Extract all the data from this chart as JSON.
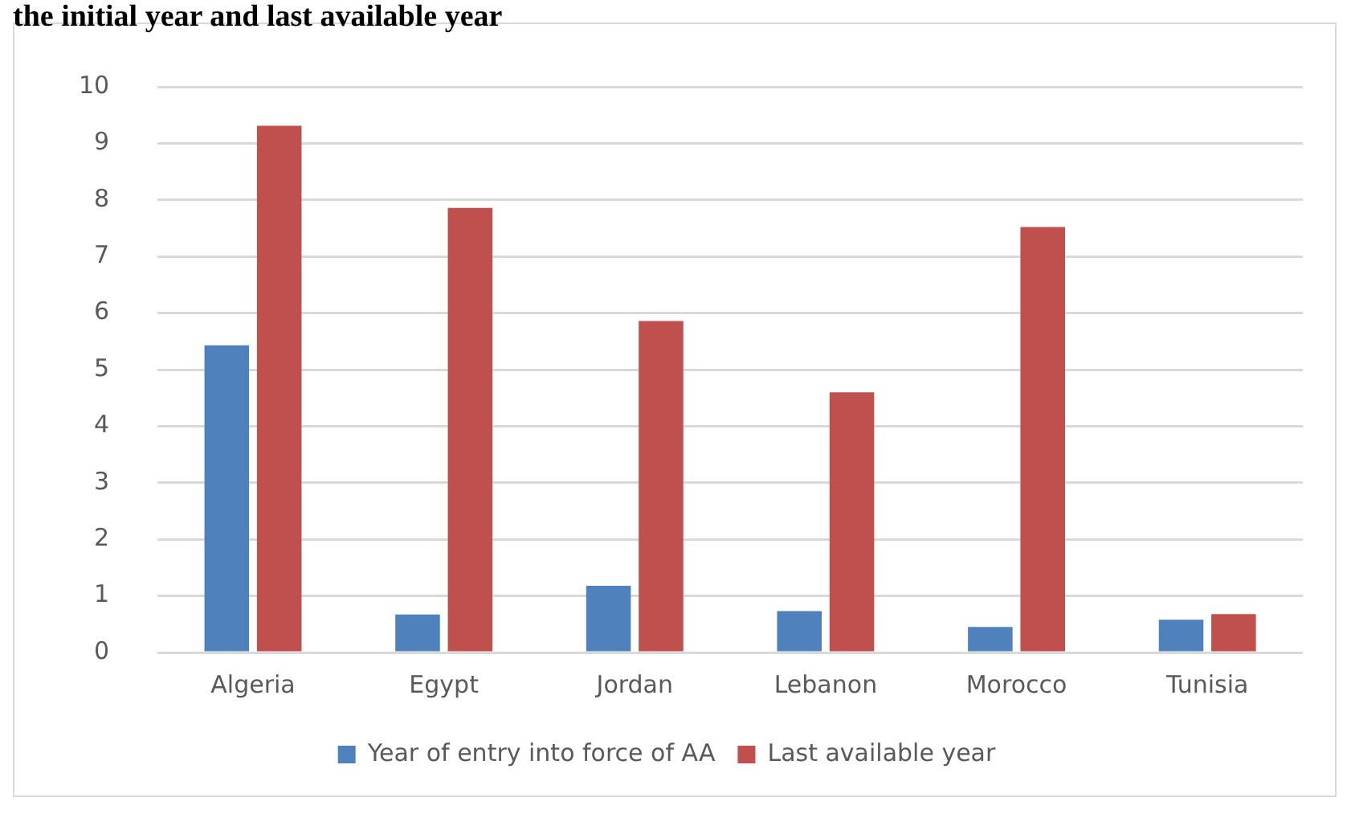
{
  "chart_data": {
    "type": "bar",
    "title": "the initial year and last available year",
    "categories": [
      "Algeria",
      "Egypt",
      "Jordan",
      "Lebanon",
      "Morocco",
      "Tunisia"
    ],
    "series": [
      {
        "name": "Year of entry into force of AA",
        "color": "#4f81bd",
        "values": [
          5.43,
          0.67,
          1.18,
          0.73,
          0.45,
          0.58
        ]
      },
      {
        "name": "Last available year",
        "color": "#c0504d",
        "values": [
          9.31,
          7.86,
          5.86,
          4.6,
          7.52,
          0.68
        ]
      }
    ],
    "ylim": [
      0,
      10
    ],
    "yticks": [
      0,
      1,
      2,
      3,
      4,
      5,
      6,
      7,
      8,
      9,
      10
    ],
    "grid": "y",
    "legend": "bottom"
  }
}
